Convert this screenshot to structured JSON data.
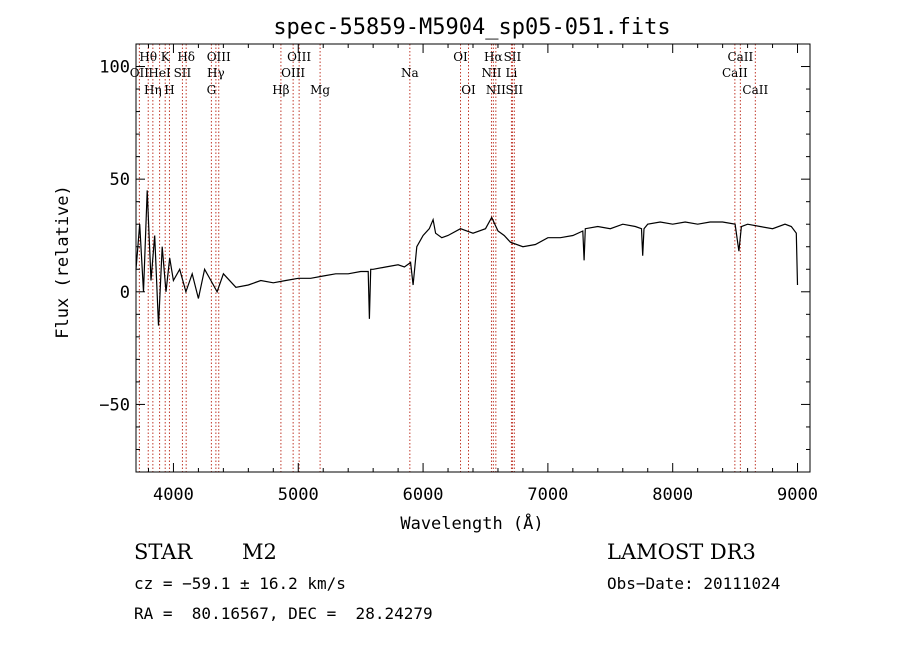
{
  "chart_data": {
    "type": "line",
    "title": "spec-55859-M5904_sp05-051.fits",
    "xlabel": "Wavelength (Å)",
    "ylabel": "Flux (relative)",
    "xlim": [
      3700,
      9100
    ],
    "ylim": [
      -80,
      110
    ],
    "xticks": [
      4000,
      5000,
      6000,
      7000,
      8000,
      9000
    ],
    "xtick_labels": [
      "4000",
      "5000",
      "6000",
      "7000",
      "8000",
      "9000"
    ],
    "yticks": [
      -50,
      0,
      50,
      100
    ],
    "ytick_labels": [
      "−50",
      "0",
      "50",
      "100"
    ],
    "series": [
      {
        "name": "flux",
        "x": [
          3700,
          3730,
          3760,
          3790,
          3820,
          3850,
          3880,
          3910,
          3940,
          3970,
          4000,
          4050,
          4100,
          4150,
          4200,
          4250,
          4300,
          4350,
          4400,
          4500,
          4600,
          4700,
          4800,
          4900,
          5000,
          5100,
          5200,
          5300,
          5400,
          5500,
          5560,
          5570,
          5580,
          5600,
          5700,
          5800,
          5850,
          5900,
          5920,
          5950,
          6000,
          6050,
          6080,
          6100,
          6150,
          6200,
          6300,
          6400,
          6500,
          6550,
          6600,
          6650,
          6700,
          6800,
          6900,
          7000,
          7100,
          7200,
          7280,
          7290,
          7300,
          7400,
          7500,
          7600,
          7700,
          7750,
          7760,
          7770,
          7800,
          7900,
          8000,
          8100,
          8200,
          8300,
          8400,
          8500,
          8530,
          8550,
          8600,
          8700,
          8800,
          8900,
          8950,
          8990,
          9000
        ],
        "y": [
          10,
          30,
          0,
          45,
          5,
          25,
          -15,
          20,
          0,
          15,
          5,
          10,
          0,
          8,
          -3,
          10,
          5,
          0,
          8,
          2,
          3,
          5,
          4,
          5,
          6,
          6,
          7,
          8,
          8,
          9,
          9,
          -12,
          10,
          10,
          11,
          12,
          11,
          13,
          3,
          20,
          25,
          28,
          32,
          26,
          24,
          25,
          28,
          26,
          28,
          33,
          27,
          25,
          22,
          20,
          21,
          24,
          24,
          25,
          27,
          14,
          28,
          29,
          28,
          30,
          29,
          28,
          16,
          28,
          30,
          31,
          30,
          31,
          30,
          31,
          31,
          30,
          18,
          29,
          30,
          29,
          28,
          30,
          29,
          26,
          3
        ]
      }
    ],
    "lines": [
      {
        "label": "OII",
        "wave": 3727,
        "row": 2
      },
      {
        "label": "Hθ",
        "wave": 3798,
        "row": 1
      },
      {
        "label": "Hη",
        "wave": 3835,
        "row": 3
      },
      {
        "label": "HeI",
        "wave": 3889,
        "row": 2
      },
      {
        "label": "K",
        "wave": 3934,
        "row": 1
      },
      {
        "label": "H",
        "wave": 3968,
        "row": 3
      },
      {
        "label": "SII",
        "wave": 4072,
        "row": 2
      },
      {
        "label": "Hδ",
        "wave": 4102,
        "row": 1
      },
      {
        "label": "G",
        "wave": 4304,
        "row": 3
      },
      {
        "label": "Hγ",
        "wave": 4340,
        "row": 2
      },
      {
        "label": "OIII",
        "wave": 4363,
        "row": 1
      },
      {
        "label": "Hβ",
        "wave": 4861,
        "row": 3
      },
      {
        "label": "OIII",
        "wave": 4959,
        "row": 2
      },
      {
        "label": "OIII",
        "wave": 5007,
        "row": 1
      },
      {
        "label": "Mg",
        "wave": 5175,
        "row": 3
      },
      {
        "label": "Na",
        "wave": 5894,
        "row": 2
      },
      {
        "label": "OI",
        "wave": 6300,
        "row": 1
      },
      {
        "label": "OI",
        "wave": 6364,
        "row": 3
      },
      {
        "label": "NII",
        "wave": 6548,
        "row": 2
      },
      {
        "label": "Hα",
        "wave": 6563,
        "row": 1
      },
      {
        "label": "NII",
        "wave": 6583,
        "row": 3
      },
      {
        "label": "Li",
        "wave": 6708,
        "row": 2
      },
      {
        "label": "SII",
        "wave": 6716,
        "row": 1
      },
      {
        "label": "SII",
        "wave": 6731,
        "row": 3
      },
      {
        "label": "CaII",
        "wave": 8498,
        "row": 2
      },
      {
        "label": "CaII",
        "wave": 8542,
        "row": 1
      },
      {
        "label": "CaII",
        "wave": 8662,
        "row": 3
      }
    ]
  },
  "info": {
    "object_type": "STAR",
    "subclass": "M2",
    "survey": "LAMOST DR3",
    "cz": "cz = −59.1 ± 16.2 km/s",
    "obs_date": "Obs−Date: 20111024",
    "coords": "RA =  80.16567, DEC =  28.24279"
  },
  "colors": {
    "axis": "#000000",
    "line_marker": "#c0392b",
    "spectrum": "#000000"
  }
}
